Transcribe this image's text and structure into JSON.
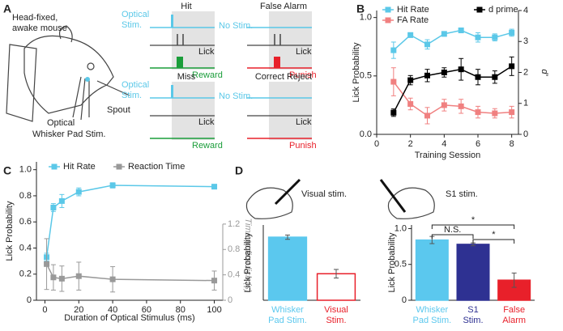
{
  "panel_labels": [
    "A",
    "B",
    "C",
    "D"
  ],
  "diagram": {
    "mouse": {
      "title_lines": [
        "Head-fixed,",
        "awake mouse"
      ],
      "spout": "Spout",
      "stim_lines": [
        "Optical",
        "Whisker Pad Stim."
      ]
    },
    "trials": [
      {
        "title": "Hit",
        "stim": "Optical\nStim.",
        "lick": "Lick",
        "outcome": "Reward"
      },
      {
        "title": "False Alarm",
        "stim": "No Stim.",
        "lick": "Lick",
        "outcome": "Punish"
      },
      {
        "title": "Miss",
        "stim": "Optical\nStim.",
        "lick": "Lick",
        "outcome": "Reward"
      },
      {
        "title": "Correct Reject",
        "stim": "No Stim.",
        "lick": "Lick",
        "outcome": "Punish"
      }
    ],
    "d_labels": [
      "Visual stim.",
      "S1 stim."
    ]
  },
  "chart_data": [
    {
      "type": "line",
      "x_label": "Training Session",
      "y_label": "Lick Probability",
      "y2_label": "d'",
      "x": [
        1,
        2,
        3,
        4,
        5,
        6,
        7,
        8
      ],
      "series": [
        {
          "name": "Hit Rate",
          "color": "#5bc8e8",
          "values": [
            0.72,
            0.85,
            0.77,
            0.86,
            0.89,
            0.83,
            0.83,
            0.87
          ],
          "errors": [
            0.07,
            0.02,
            0.04,
            0.02,
            0.02,
            0.04,
            0.03,
            0.03
          ]
        },
        {
          "name": "FA Rate",
          "color": "#f08080",
          "values": [
            0.45,
            0.26,
            0.16,
            0.25,
            0.24,
            0.19,
            0.18,
            0.19
          ],
          "errors": [
            0.12,
            0.05,
            0.07,
            0.05,
            0.06,
            0.05,
            0.04,
            0.05
          ]
        },
        {
          "name": "d prime",
          "color": "#000000",
          "axis": "y2",
          "values": [
            0.7,
            1.75,
            1.9,
            2.0,
            2.1,
            1.85,
            1.85,
            2.2
          ],
          "errors": [
            0.12,
            0.15,
            0.2,
            0.15,
            0.35,
            0.25,
            0.2,
            0.3
          ]
        }
      ],
      "xlim": [
        0,
        8.4
      ],
      "xticks": [
        0,
        2,
        4,
        6,
        8
      ],
      "ylim": [
        0,
        1.06
      ],
      "yticks": [
        {
          "value": 0,
          "label": "0.0"
        },
        0.5,
        {
          "value": 1,
          "label": "1.0"
        }
      ],
      "y2lim": [
        0,
        4
      ],
      "y2ticks": [
        0,
        1,
        2,
        3,
        4
      ]
    },
    {
      "type": "line",
      "x_label": "Duration of Optical Stimulus (ms)",
      "y_label": "Lick Probability",
      "y2_label": "Time to first lick (s)",
      "x": [
        1,
        5,
        10,
        20,
        40,
        100
      ],
      "series": [
        {
          "name": "Hit Rate",
          "color": "#5bc8e8",
          "values": [
            0.33,
            0.71,
            0.76,
            0.83,
            0.88,
            0.87
          ],
          "errors": [
            0.03,
            0.03,
            0.05,
            0.03,
            0.02,
            0.01
          ]
        },
        {
          "name": "Reaction Time",
          "color": "#999999",
          "axis": "y2",
          "values": [
            0.57,
            0.36,
            0.34,
            0.38,
            0.33,
            0.31
          ],
          "errors": [
            0.4,
            0.2,
            0.2,
            0.22,
            0.2,
            0.15
          ]
        }
      ],
      "xlim": [
        -5,
        105
      ],
      "xticks": [
        0,
        20,
        40,
        60,
        80,
        100
      ],
      "ylim": [
        0,
        1.06
      ],
      "yticks": [
        0,
        0.2,
        0.4,
        0.6,
        0.8,
        {
          "value": 1,
          "label": "1.0"
        }
      ],
      "y2lim": [
        0,
        2.18
      ],
      "y2ticks": [
        0,
        0.4,
        0.8,
        1.2
      ]
    },
    {
      "type": "bar",
      "y_label": "Lick Probability",
      "categories": [
        "Whisker\nPad Stim.",
        "Visual\nStim."
      ],
      "values": [
        0.88,
        0.37
      ],
      "errors": [
        0.03,
        0.06
      ],
      "colors": [
        "#5bc8ee",
        "#ffffff"
      ],
      "edgecolors": [
        "#5bc8ee",
        "#e8202a"
      ],
      "ylim": [
        0,
        1.05
      ]
    },
    {
      "type": "bar",
      "y_label": "Lick Probability",
      "categories": [
        "Whisker\nPad Stim.",
        "S1\nStim.",
        "False\nAlarm"
      ],
      "values": [
        0.84,
        0.78,
        0.28
      ],
      "errors": [
        0.05,
        0.02,
        0.1
      ],
      "colors": [
        "#5bc8ee",
        "#2e3192",
        "#e8202a"
      ],
      "edgecolors": [
        "#5bc8ee",
        "#2e3192",
        "#e8202a"
      ],
      "ylim": [
        0,
        1.05
      ],
      "yticks": [
        0,
        0.5,
        {
          "value": 1,
          "label": "1.0"
        }
      ],
      "annotations": [
        "N.S.",
        "*",
        "*"
      ]
    }
  ]
}
